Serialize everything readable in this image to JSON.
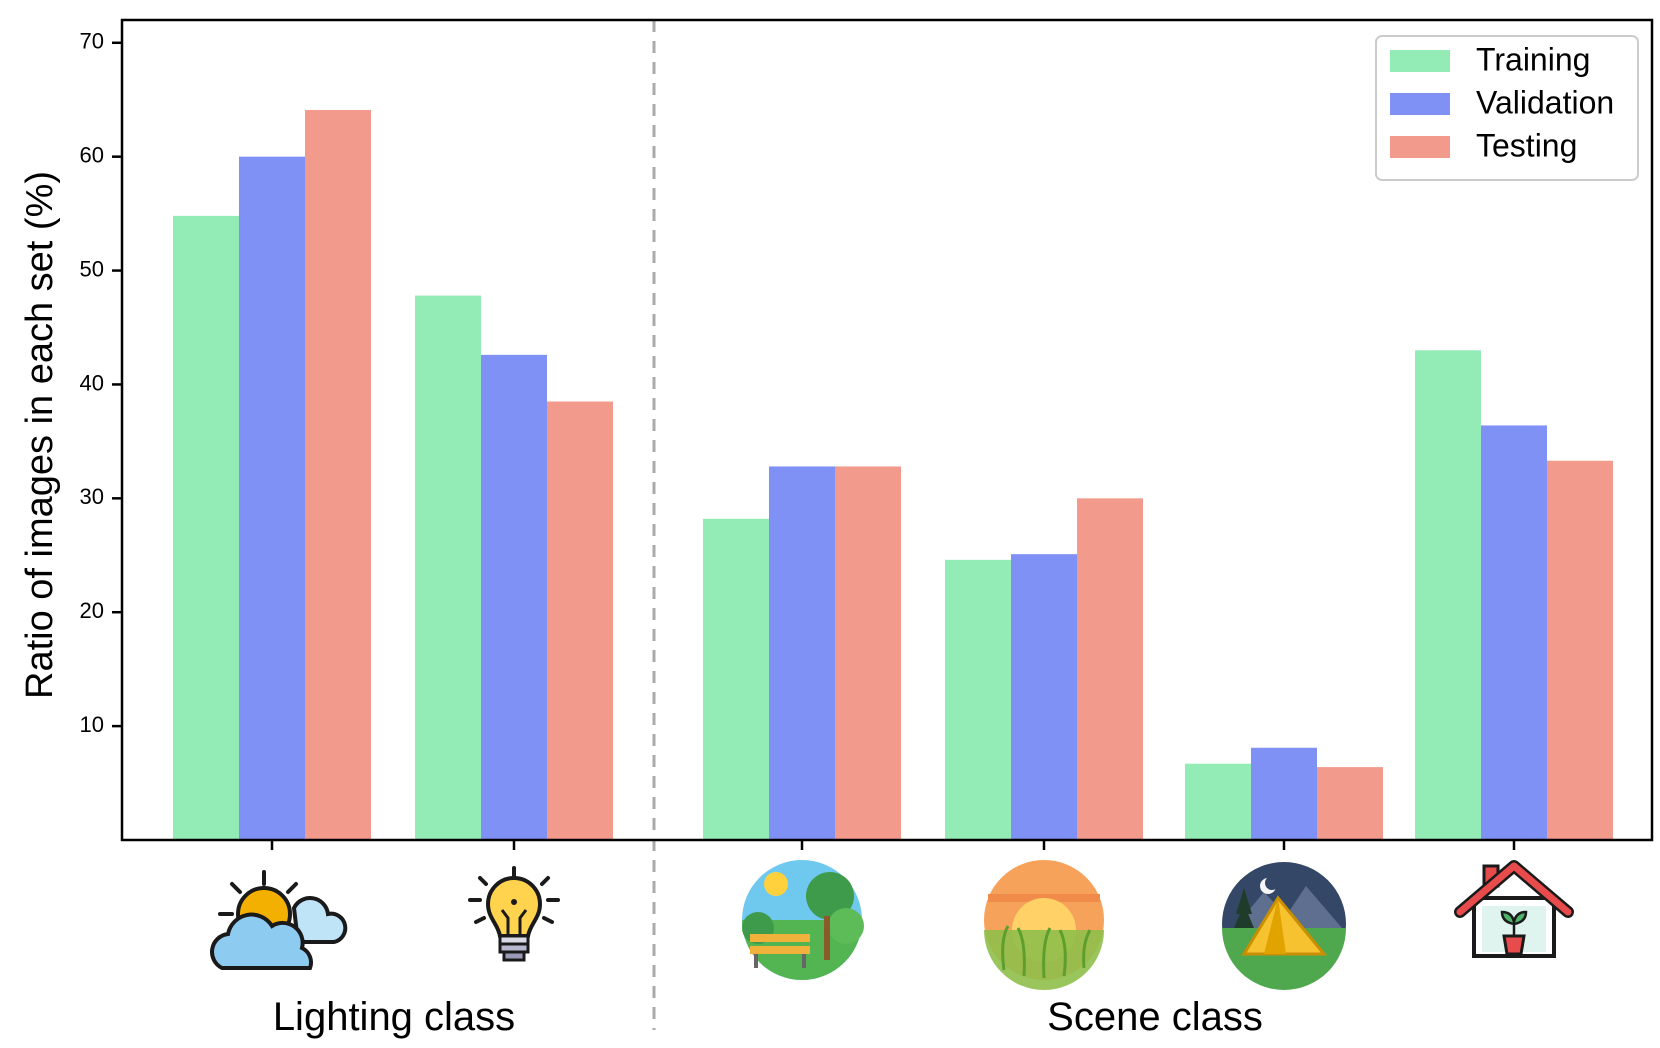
{
  "chart_data": {
    "type": "bar",
    "title": "",
    "xlabel": "",
    "ylabel": "Ratio of images in each set (%)",
    "ylim": [
      0,
      72
    ],
    "yticks": [
      10,
      20,
      30,
      40,
      50,
      60,
      70
    ],
    "categories": [
      "daylight-icon",
      "artificial-light-icon",
      "park-icon",
      "sunset-field-icon",
      "night-camp-icon",
      "indoor-home-icon"
    ],
    "series": [
      {
        "name": "Training",
        "color": "#93ebb6",
        "values": [
          54.8,
          47.8,
          28.2,
          24.6,
          6.7,
          43.0
        ]
      },
      {
        "name": "Validation",
        "color": "#8091f5",
        "values": [
          60.0,
          42.6,
          32.8,
          25.1,
          8.1,
          36.4
        ]
      },
      {
        "name": "Testing",
        "color": "#f29a8c",
        "values": [
          64.1,
          38.5,
          32.8,
          30.0,
          6.4,
          33.3
        ]
      }
    ],
    "group_labels": [
      "Lighting class",
      "Scene class"
    ],
    "group_split_after": 1,
    "legend_position": "top-right",
    "grid": false
  }
}
